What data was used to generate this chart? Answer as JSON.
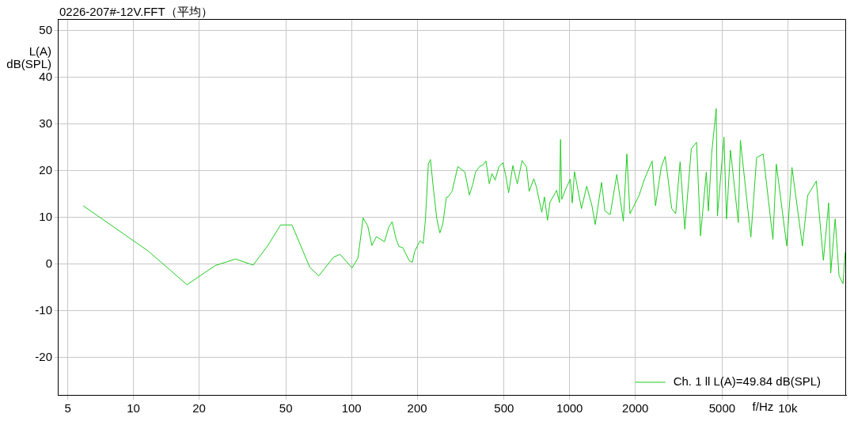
{
  "chart_data": {
    "type": "line",
    "title": "0226-207#-12V.FFT（平均）",
    "xlabel": "f/Hz",
    "ylabel": "L(A)\ndB(SPL)",
    "log": "x",
    "grid": true,
    "legend": "bottom right",
    "marker": "none",
    "line_style": "solid",
    "xlim": [
      4.5,
      18500
    ],
    "ylim": [
      -28,
      52.5
    ],
    "xticks": [
      5,
      10,
      20,
      50,
      100,
      200,
      500,
      1000,
      2000,
      5000,
      {
        "value": 10000,
        "label": "10k"
      }
    ],
    "yticks": [
      -20,
      -10,
      0,
      10,
      20,
      30,
      40,
      50
    ],
    "series": [
      {
        "name": "Ch. 1 ll L(A)=49.84 dB(SPL)",
        "color": "#22cc22",
        "x": [
          5.89,
          11.7,
          17.6,
          23.7,
          29.4,
          35.4,
          41.2,
          47.3,
          53.3,
          64.4,
          70.8,
          82.7,
          88.6,
          100.5,
          107,
          113,
          118.6,
          124,
          130,
          141.6,
          148,
          153.5,
          160,
          165,
          172,
          184,
          190,
          195,
          206,
          213,
          218,
          225,
          230,
          237,
          246,
          254,
          262,
          272,
          277,
          289,
          307,
          331,
          347,
          360,
          370,
          386,
          402,
          413,
          428,
          440,
          455,
          474,
          494,
          508,
          525,
          549,
          575,
          605,
          634,
          652,
          685,
          705,
          745,
          766,
          791,
          813,
          871,
          898,
          908,
          920,
          959,
          1006,
          1028,
          1052,
          1133,
          1197,
          1265,
          1310,
          1400,
          1451,
          1534,
          1644,
          1762,
          1828,
          1890,
          2080,
          2198,
          2388,
          2474,
          2630,
          2741,
          2937,
          3061,
          3209,
          3371,
          3611,
          3817,
          3980,
          4230,
          4324,
          4480,
          4696,
          4757,
          5097,
          5237,
          5461,
          5930,
          6064,
          6770,
          7196,
          7710,
          8545,
          8860,
          9890,
          10450,
          11670,
          12330,
          13510,
          14560,
          15390,
          15730,
          16490,
          17180,
          17910,
          18320
        ],
        "values": [
          12.5,
          2.8,
          -4.4,
          -0.3,
          1.1,
          -0.2,
          3.9,
          8.4,
          8.4,
          -0.7,
          -2.5,
          1.5,
          2.1,
          -0.8,
          1.3,
          9.9,
          8.2,
          4.0,
          5.9,
          4.8,
          7.9,
          9.1,
          5.4,
          3.8,
          3.5,
          0.7,
          0.4,
          2.8,
          5.0,
          4.4,
          9.4,
          21.5,
          22.4,
          16.4,
          9.7,
          6.7,
          8.6,
          14.3,
          14.4,
          15.6,
          20.9,
          19.7,
          14.8,
          17.2,
          19.7,
          20.9,
          21.3,
          22.1,
          17.2,
          19.4,
          18.0,
          20.9,
          21.7,
          19.2,
          15.3,
          21.1,
          17.2,
          22.2,
          20.8,
          15.6,
          18.3,
          16.4,
          11.1,
          14.4,
          9.4,
          13.3,
          15.8,
          13.2,
          26.7,
          13.9,
          16.1,
          18.2,
          13.1,
          19.8,
          11.9,
          16.7,
          12.5,
          8.5,
          17.5,
          11.4,
          10.6,
          19.2,
          9.2,
          23.6,
          10.8,
          14.7,
          18.1,
          22.1,
          12.5,
          20.8,
          23.1,
          11.9,
          10.8,
          21.9,
          7.5,
          24.7,
          26.1,
          6.1,
          19.7,
          11.4,
          23.9,
          33.3,
          10.3,
          27.2,
          9.7,
          24.4,
          8.9,
          26.5,
          5.8,
          22.8,
          23.6,
          5.3,
          21.4,
          3.9,
          20.7,
          3.9,
          14.7,
          17.8,
          0.8,
          13.1,
          -1.9,
          9.7,
          -2.5,
          -4.2,
          2.5
        ]
      }
    ]
  }
}
